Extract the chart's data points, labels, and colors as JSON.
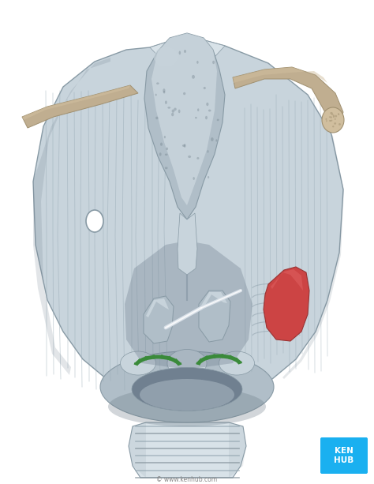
{
  "background_color": "#ffffff",
  "fig_width": 4.74,
  "fig_height": 6.13,
  "dpi": 100,
  "bg_gray": "#b8c4cc",
  "larynx_base": "#a8b8c2",
  "larynx_light": "#c8d4dc",
  "larynx_lighter": "#d8e2e8",
  "larynx_dark": "#889aa5",
  "larynx_darker": "#708090",
  "larynx_shadow": "#6a7a85",
  "larynx_mid": "#b0bec8",
  "muscle_light": "#bccad4",
  "muscle_dark": "#98aab5",
  "epi_main": "#a0b0bc",
  "epi_dots": "#6a7a85",
  "bone_main": "#c0ae90",
  "bone_light": "#d0be9e",
  "bone_dark": "#a09070",
  "green_joint": "#3a8a3a",
  "red_joint": "#cc4444",
  "red_light": "#e06060",
  "kenhub_blue": "#1ab0f0",
  "white": "#ffffff",
  "text_gray": "#888888",
  "watermark": "© www.kenhub.com",
  "kenhub_label": "KEN\nHUB",
  "trachea_stripe": "#9aaab5"
}
